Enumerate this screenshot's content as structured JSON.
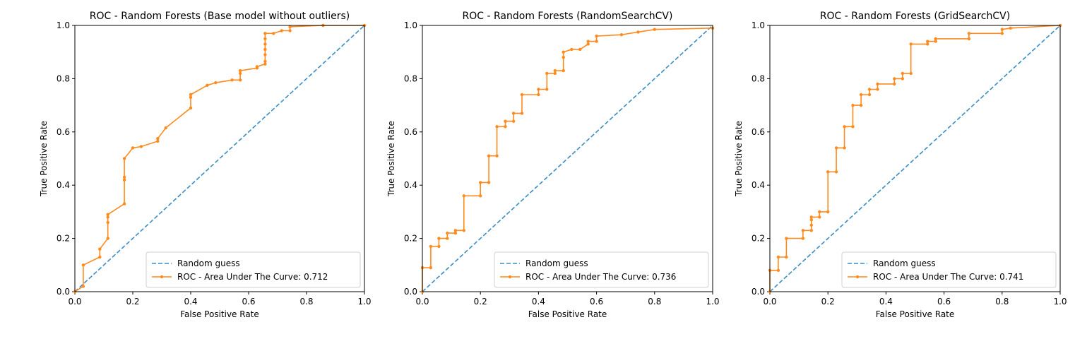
{
  "figure": {
    "colors": {
      "random_guess": "#3a8dc4",
      "roc": "#ff8b1f"
    }
  },
  "chart_data": [
    {
      "type": "line",
      "title": "ROC - Random Forests (Base model without outliers)",
      "xlabel": "False Positive Rate",
      "ylabel": "True Positive Rate",
      "xlim": [
        0,
        1
      ],
      "ylim": [
        0,
        1
      ],
      "xticks": [
        "0.0",
        "0.2",
        "0.4",
        "0.6",
        "0.8",
        "1.0"
      ],
      "yticks": [
        "0.0",
        "0.2",
        "0.4",
        "0.6",
        "0.8",
        "1.0"
      ],
      "grid": false,
      "legend_position": "lower-right",
      "series": [
        {
          "name": "Random guess",
          "style": "dashed",
          "x": [
            0,
            1
          ],
          "y": [
            0,
            1
          ]
        },
        {
          "name": "ROC - Area Under The Curve: 0.712",
          "style": "solid-markers",
          "x": [
            0,
            0.029,
            0.029,
            0.086,
            0.086,
            0.114,
            0.114,
            0.114,
            0.114,
            0.171,
            0.171,
            0.171,
            0.171,
            0.2,
            0.229,
            0.286,
            0.286,
            0.314,
            0.4,
            0.4,
            0.4,
            0.457,
            0.486,
            0.543,
            0.571,
            0.571,
            0.571,
            0.629,
            0.629,
            0.657,
            0.657,
            0.657,
            0.657,
            0.657,
            0.657,
            0.657,
            0.686,
            0.714,
            0.743,
            0.743,
            0.857,
            0.857,
            1
          ],
          "y": [
            0,
            0.02,
            0.1,
            0.13,
            0.16,
            0.2,
            0.26,
            0.28,
            0.29,
            0.33,
            0.42,
            0.43,
            0.5,
            0.54,
            0.545,
            0.565,
            0.575,
            0.615,
            0.69,
            0.73,
            0.74,
            0.775,
            0.785,
            0.795,
            0.795,
            0.82,
            0.83,
            0.84,
            0.845,
            0.855,
            0.865,
            0.89,
            0.91,
            0.93,
            0.95,
            0.97,
            0.97,
            0.98,
            0.98,
            0.995,
            1.0,
            1.0,
            1.0
          ]
        }
      ]
    },
    {
      "type": "line",
      "title": "ROC - Random Forests (RandomSearchCV)",
      "xlabel": "False Positive Rate",
      "ylabel": "True Positive Rate",
      "xlim": [
        0,
        1
      ],
      "ylim": [
        0,
        1
      ],
      "xticks": [
        "0.0",
        "0.2",
        "0.4",
        "0.6",
        "0.8",
        "1.0"
      ],
      "yticks": [
        "0.0",
        "0.2",
        "0.4",
        "0.6",
        "0.8",
        "1.0"
      ],
      "grid": false,
      "legend_position": "lower-right",
      "series": [
        {
          "name": "Random guess",
          "style": "dashed",
          "x": [
            0,
            1
          ],
          "y": [
            0,
            1
          ]
        },
        {
          "name": "ROC - Area Under The Curve: 0.736",
          "style": "solid-markers",
          "x": [
            0,
            0,
            0.029,
            0.029,
            0.057,
            0.057,
            0.086,
            0.086,
            0.114,
            0.114,
            0.143,
            0.143,
            0.2,
            0.2,
            0.229,
            0.229,
            0.257,
            0.257,
            0.286,
            0.286,
            0.314,
            0.314,
            0.343,
            0.343,
            0.4,
            0.4,
            0.429,
            0.429,
            0.457,
            0.457,
            0.486,
            0.486,
            0.486,
            0.514,
            0.543,
            0.571,
            0.571,
            0.6,
            0.6,
            0.686,
            0.743,
            0.8,
            1
          ],
          "y": [
            0,
            0.09,
            0.09,
            0.17,
            0.17,
            0.2,
            0.2,
            0.22,
            0.22,
            0.23,
            0.23,
            0.36,
            0.36,
            0.41,
            0.41,
            0.51,
            0.51,
            0.62,
            0.62,
            0.64,
            0.64,
            0.67,
            0.67,
            0.74,
            0.74,
            0.76,
            0.76,
            0.82,
            0.82,
            0.83,
            0.83,
            0.88,
            0.9,
            0.91,
            0.91,
            0.93,
            0.94,
            0.94,
            0.96,
            0.965,
            0.975,
            0.985,
            0.99
          ]
        }
      ]
    },
    {
      "type": "line",
      "title": "ROC - Random Forests (GridSearchCV)",
      "xlabel": "False Positive Rate",
      "ylabel": "True Positive Rate",
      "xlim": [
        0,
        1
      ],
      "ylim": [
        0,
        1
      ],
      "xticks": [
        "0.0",
        "0.2",
        "0.4",
        "0.6",
        "0.8",
        "1.0"
      ],
      "yticks": [
        "0.0",
        "0.2",
        "0.4",
        "0.6",
        "0.8",
        "1.0"
      ],
      "grid": false,
      "legend_position": "lower-right",
      "series": [
        {
          "name": "Random guess",
          "style": "dashed",
          "x": [
            0,
            1
          ],
          "y": [
            0,
            1
          ]
        },
        {
          "name": "ROC - Area Under The Curve: 0.741",
          "style": "solid-markers",
          "x": [
            0,
            0,
            0.029,
            0.029,
            0.057,
            0.057,
            0.114,
            0.114,
            0.143,
            0.143,
            0.143,
            0.143,
            0.171,
            0.171,
            0.2,
            0.2,
            0.229,
            0.229,
            0.257,
            0.257,
            0.286,
            0.286,
            0.314,
            0.314,
            0.343,
            0.343,
            0.371,
            0.371,
            0.429,
            0.429,
            0.457,
            0.457,
            0.486,
            0.486,
            0.543,
            0.543,
            0.571,
            0.571,
            0.686,
            0.686,
            0.8,
            0.8,
            0.829,
            1
          ],
          "y": [
            0,
            0.08,
            0.08,
            0.13,
            0.13,
            0.2,
            0.2,
            0.23,
            0.23,
            0.25,
            0.27,
            0.28,
            0.28,
            0.3,
            0.3,
            0.45,
            0.45,
            0.54,
            0.54,
            0.62,
            0.62,
            0.7,
            0.7,
            0.74,
            0.74,
            0.76,
            0.76,
            0.78,
            0.78,
            0.8,
            0.8,
            0.82,
            0.82,
            0.93,
            0.93,
            0.94,
            0.94,
            0.95,
            0.95,
            0.97,
            0.97,
            0.985,
            0.99,
            1.0
          ]
        }
      ]
    }
  ]
}
